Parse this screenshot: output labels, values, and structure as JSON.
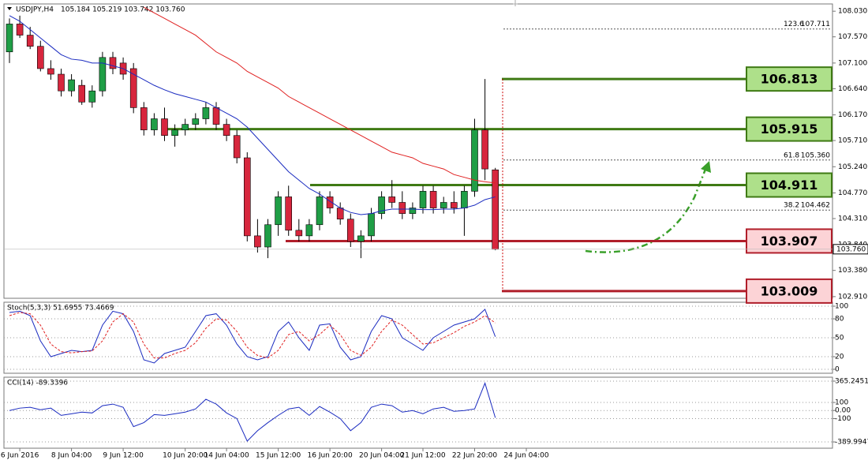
{
  "symbol": "USDJPY,H4",
  "quote": "105.184 105.219 103.742 103.760",
  "chart_data": [
    {
      "type": "candlestick",
      "categories": [
        null,
        "6 Jun 2016",
        null,
        null,
        null,
        null,
        "8 Jun 04:00",
        null,
        null,
        null,
        null,
        "9 Jun 12:00",
        null,
        null,
        null,
        null,
        null,
        "10 Jun 20:00",
        null,
        null,
        null,
        "14 Jun 04:00",
        null,
        null,
        null,
        null,
        "15 Jun 12:00",
        null,
        null,
        null,
        null,
        "16 Jun 20:00",
        null,
        null,
        null,
        null,
        "20 Jun 04:00",
        null,
        null,
        null,
        "21 Jun 12:00",
        null,
        null,
        null,
        null,
        "22 Jun 20:00",
        null,
        null,
        null,
        null,
        "24 Jun 04:00"
      ],
      "open": [
        107.3,
        107.8,
        107.6,
        107.4,
        107.0,
        106.9,
        106.6,
        106.7,
        106.4,
        106.6,
        107.2,
        107.1,
        107.0,
        106.3,
        105.9,
        106.1,
        105.8,
        105.9,
        106.0,
        106.1,
        106.3,
        106.0,
        105.8,
        105.4,
        104.0,
        103.8,
        104.2,
        104.7,
        104.1,
        104.0,
        104.2,
        104.7,
        104.5,
        104.3,
        103.9,
        104.0,
        104.4,
        104.7,
        104.6,
        104.4,
        104.5,
        104.8,
        104.5,
        104.6,
        104.5,
        104.8,
        105.9,
        105.184,
        null,
        null,
        null
      ],
      "high": [
        107.9,
        107.95,
        107.75,
        107.5,
        107.15,
        107.0,
        106.9,
        106.8,
        106.7,
        107.3,
        107.3,
        107.2,
        107.1,
        106.4,
        106.2,
        106.3,
        106.0,
        106.1,
        106.2,
        106.4,
        106.4,
        106.1,
        105.9,
        105.5,
        104.3,
        104.3,
        104.8,
        104.9,
        104.3,
        104.3,
        104.8,
        104.8,
        104.6,
        104.4,
        104.1,
        104.5,
        104.8,
        105.0,
        104.8,
        104.6,
        104.9,
        104.9,
        104.7,
        104.8,
        104.9,
        106.1,
        106.813,
        105.219,
        null,
        null,
        null
      ],
      "low": [
        107.1,
        107.55,
        107.35,
        106.95,
        106.8,
        106.5,
        106.5,
        106.35,
        106.3,
        106.5,
        106.9,
        106.8,
        106.2,
        105.8,
        105.8,
        105.7,
        105.6,
        105.8,
        105.9,
        106.0,
        105.9,
        105.7,
        105.3,
        103.9,
        103.7,
        103.6,
        104.0,
        104.0,
        103.9,
        103.9,
        104.1,
        104.4,
        104.2,
        103.8,
        103.6,
        103.9,
        104.3,
        104.5,
        104.3,
        104.3,
        104.4,
        104.4,
        104.4,
        104.4,
        104.0,
        104.7,
        105.0,
        103.742,
        null,
        null,
        null
      ],
      "close": [
        107.8,
        107.6,
        107.4,
        107.0,
        106.9,
        106.6,
        106.8,
        106.4,
        106.6,
        107.2,
        107.0,
        106.9,
        106.3,
        105.9,
        106.1,
        105.8,
        105.9,
        106.0,
        106.1,
        106.3,
        106.0,
        105.8,
        105.4,
        104.0,
        103.8,
        104.2,
        104.7,
        104.1,
        104.0,
        104.2,
        104.7,
        104.5,
        104.3,
        103.9,
        104.0,
        104.4,
        104.7,
        104.6,
        104.4,
        104.5,
        104.8,
        104.5,
        104.6,
        104.5,
        104.8,
        105.9,
        105.2,
        103.76,
        null,
        null,
        null
      ],
      "up_color": "#1f9e46",
      "down_color": "#d7263d",
      "series": [
        {
          "color": "#1a2bc0",
          "values": [
            107.95,
            107.85,
            107.7,
            107.55,
            107.4,
            107.25,
            107.17,
            107.15,
            107.1,
            107.1,
            107.05,
            107.0,
            106.9,
            106.8,
            106.7,
            106.62,
            106.55,
            106.5,
            106.45,
            106.4,
            106.3,
            106.2,
            106.1,
            105.95,
            105.75,
            105.55,
            105.35,
            105.15,
            105.0,
            104.85,
            104.75,
            104.62,
            104.5,
            104.42,
            104.38,
            104.4,
            104.45,
            104.48,
            104.48,
            104.48,
            104.47,
            104.47,
            104.48,
            104.48,
            104.5,
            104.55,
            104.65,
            104.7,
            null,
            null,
            null
          ]
        },
        {
          "color": "#e02020",
          "values": [
            null,
            null,
            null,
            null,
            null,
            null,
            null,
            null,
            null,
            null,
            null,
            null,
            null,
            108.1,
            108.0,
            107.9,
            107.8,
            107.7,
            107.6,
            107.45,
            107.3,
            107.2,
            107.1,
            106.95,
            106.85,
            106.75,
            106.65,
            106.5,
            106.4,
            106.3,
            106.2,
            106.1,
            106.0,
            105.9,
            105.8,
            105.7,
            105.6,
            105.5,
            105.45,
            105.4,
            105.3,
            105.25,
            105.2,
            105.1,
            105.05,
            105.0,
            104.97,
            104.95,
            null,
            null,
            null
          ]
        }
      ],
      "ylim": [
        102.88,
        108.16
      ],
      "yticks": [
        {
          "value": 108.03,
          "label": "108.030"
        },
        {
          "value": 107.57,
          "label": "107.570"
        },
        {
          "value": 107.1,
          "label": "107.100"
        },
        {
          "value": 106.64,
          "label": "106.640"
        },
        {
          "value": 106.17,
          "label": "106.170"
        },
        {
          "value": 105.71,
          "label": "105.710"
        },
        {
          "value": 105.24,
          "label": "105.240"
        },
        {
          "value": 104.77,
          "label": "104.770"
        },
        {
          "value": 104.31,
          "label": "104.310"
        },
        {
          "value": 103.84,
          "label": "103.840"
        },
        {
          "value": 103.38,
          "label": "103.380"
        },
        {
          "value": 102.91,
          "label": "102.910"
        }
      ],
      "last_price": {
        "value": 103.76,
        "label": "103.760"
      },
      "levels": [
        {
          "value": 106.813,
          "color": "#3f7a14",
          "fill": "#aee08a"
        },
        {
          "value": 105.915,
          "color": "#3f7a14",
          "fill": "#aee08a"
        },
        {
          "value": 104.911,
          "color": "#3f7a14",
          "fill": "#aee08a"
        },
        {
          "value": 103.907,
          "color": "#b01e2a",
          "fill": "#fcd3d6"
        },
        {
          "value": 103.009,
          "color": "#b01e2a",
          "fill": "#fcd3d6"
        }
      ],
      "fibs": [
        {
          "ratio": 123.6,
          "value": 107.711
        },
        {
          "ratio": 61.8,
          "value": 105.36,
          "label": "105.360"
        },
        {
          "ratio": 38.2,
          "value": 104.462
        }
      ]
    },
    {
      "type": "line",
      "title": "Stoch(5,3,3) 51.6955 73.4669",
      "ylim": [
        -6.25,
        106.25
      ],
      "yticks": [
        100,
        80,
        50,
        20,
        0
      ],
      "series": [
        {
          "color": "#1a2bc0",
          "values": [
            90,
            92,
            85,
            45,
            20,
            25,
            30,
            28,
            30,
            70,
            92,
            88,
            60,
            15,
            10,
            25,
            30,
            35,
            60,
            85,
            88,
            70,
            40,
            20,
            15,
            20,
            60,
            75,
            50,
            30,
            70,
            72,
            35,
            15,
            20,
            60,
            85,
            80,
            50,
            40,
            30,
            50,
            60,
            70,
            75,
            80,
            95,
            51.6955
          ]
        },
        {
          "color": "#e02020",
          "dash": true,
          "values": [
            85,
            90,
            88,
            70,
            40,
            28,
            26,
            28,
            29,
            45,
            75,
            88,
            75,
            40,
            18,
            18,
            25,
            30,
            42,
            65,
            80,
            78,
            60,
            35,
            22,
            18,
            30,
            55,
            60,
            45,
            55,
            70,
            55,
            30,
            22,
            35,
            60,
            78,
            70,
            55,
            40,
            42,
            50,
            58,
            68,
            75,
            85,
            73.4669
          ]
        }
      ]
    },
    {
      "type": "line",
      "title": "CCI(14) -89.3396",
      "ylim": [
        -468,
        414
      ],
      "yticks": [
        365.2451,
        100,
        {
          "value": 0,
          "label": "0.00"
        },
        -100,
        -389.9947
      ],
      "series": [
        {
          "color": "#1a2bc0",
          "values": [
            0,
            30,
            40,
            10,
            30,
            -60,
            -40,
            -20,
            -30,
            60,
            80,
            40,
            -200,
            -150,
            -50,
            -60,
            -40,
            -20,
            20,
            140,
            80,
            -30,
            -100,
            -380,
            -250,
            -150,
            -60,
            20,
            40,
            -60,
            50,
            -20,
            -100,
            -250,
            -150,
            40,
            80,
            60,
            -20,
            0,
            -40,
            20,
            40,
            -10,
            0,
            20,
            340,
            -89.3396
          ]
        }
      ]
    }
  ]
}
